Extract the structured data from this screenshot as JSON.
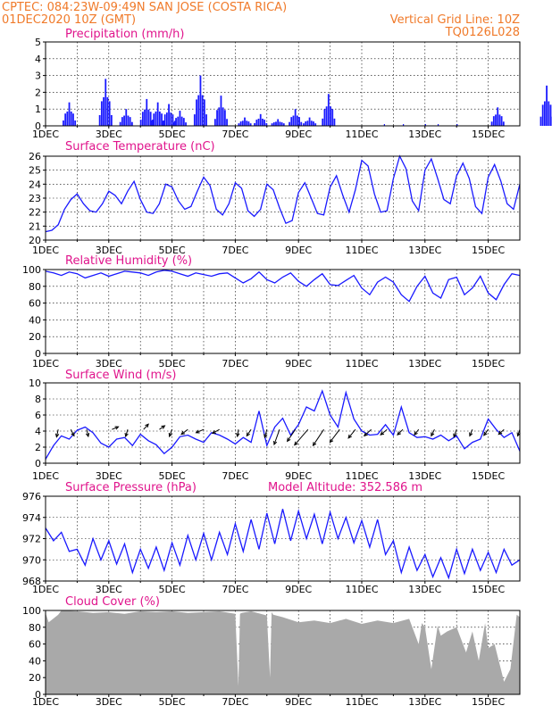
{
  "header": {
    "line1": "CPTEC:   084:23W-09:49N  SAN JOSE (COSTA RICA)",
    "line2": "01DEC2020 10Z (GMT)",
    "grid_note": "Vertical Grid Line: 10Z",
    "code": "TQ0126L028"
  },
  "x_ticks": [
    "1DEC",
    "3DEC",
    "5DEC",
    "7DEC",
    "9DEC",
    "11DEC",
    "13DEC",
    "15DEC"
  ],
  "colors": {
    "header": "#f07a2a",
    "panel_title": "#e0148c",
    "line": "#1a1aff",
    "cloud": "#a9a9a9",
    "grid": "#000000"
  },
  "chart_data": [
    {
      "id": "precip",
      "type": "bar",
      "title": "Precipitation (mm/h)",
      "ylim": [
        0,
        5
      ],
      "yticks": [
        "0",
        "1",
        "2",
        "3",
        "4",
        "5"
      ],
      "x_range_days": [
        0,
        15
      ],
      "clusters": [
        {
          "day": 0.75,
          "peak": 1.4
        },
        {
          "day": 1.9,
          "peak": 2.8
        },
        {
          "day": 2.55,
          "peak": 1.0
        },
        {
          "day": 3.2,
          "peak": 1.6
        },
        {
          "day": 3.55,
          "peak": 1.4
        },
        {
          "day": 3.9,
          "peak": 1.3
        },
        {
          "day": 4.25,
          "peak": 0.9
        },
        {
          "day": 4.9,
          "peak": 3.0
        },
        {
          "day": 5.55,
          "peak": 1.8
        },
        {
          "day": 6.3,
          "peak": 0.5
        },
        {
          "day": 6.8,
          "peak": 0.7
        },
        {
          "day": 7.35,
          "peak": 0.4
        },
        {
          "day": 7.9,
          "peak": 1.0
        },
        {
          "day": 8.35,
          "peak": 0.5
        },
        {
          "day": 8.95,
          "peak": 1.9
        },
        {
          "day": 14.3,
          "peak": 1.1
        },
        {
          "day": 15.85,
          "peak": 2.4
        }
      ]
    },
    {
      "id": "temp",
      "type": "line",
      "title": "Surface Temperature (nC)",
      "ylim": [
        20,
        26
      ],
      "yticks": [
        "20",
        "21",
        "22",
        "23",
        "24",
        "25",
        "26"
      ],
      "x_range_days": [
        0,
        15
      ],
      "x_days": [
        0.0,
        0.2,
        0.4,
        0.6,
        0.8,
        1.0,
        1.2,
        1.4,
        1.6,
        1.8,
        2.0,
        2.2,
        2.4,
        2.6,
        2.8,
        3.0,
        3.2,
        3.4,
        3.6,
        3.8,
        4.0,
        4.2,
        4.4,
        4.6,
        4.8,
        5.0,
        5.2,
        5.4,
        5.6,
        5.8,
        6.0,
        6.2,
        6.4,
        6.6,
        6.8,
        7.0,
        7.2,
        7.4,
        7.6,
        7.8,
        8.0,
        8.2,
        8.4,
        8.6,
        8.8,
        9.0,
        9.2,
        9.4,
        9.6,
        9.8,
        10.0,
        10.2,
        10.4,
        10.6,
        10.8,
        11.0,
        11.2,
        11.4,
        11.6,
        11.8,
        12.0,
        12.2,
        12.4,
        12.6,
        12.8,
        13.0,
        13.2,
        13.4,
        13.6,
        13.8,
        14.0,
        14.2,
        14.4,
        14.6,
        14.8,
        15.0
      ],
      "values": [
        20.6,
        20.7,
        21.1,
        22.2,
        22.9,
        23.3,
        22.6,
        22.1,
        22.0,
        22.6,
        23.5,
        23.2,
        22.6,
        23.5,
        24.2,
        22.9,
        22.0,
        21.9,
        22.6,
        24.0,
        23.8,
        22.8,
        22.2,
        22.4,
        23.5,
        24.5,
        23.9,
        22.2,
        21.8,
        22.6,
        24.1,
        23.7,
        22.1,
        21.7,
        22.2,
        24.0,
        23.6,
        22.3,
        21.2,
        21.4,
        23.4,
        24.1,
        23.0,
        21.9,
        21.8,
        23.8,
        24.6,
        23.2,
        22.0,
        23.6,
        25.7,
        25.3,
        23.3,
        22.0,
        22.1,
        24.4,
        26.0,
        25.1,
        22.8,
        22.1,
        25.0,
        25.8,
        24.4,
        22.9,
        22.6,
        24.6,
        25.5,
        24.4,
        22.4,
        21.9,
        24.5,
        25.4,
        24.2,
        22.6,
        22.2,
        24.0
      ]
    },
    {
      "id": "rh",
      "type": "line",
      "title": "Relative Humidity (%)",
      "ylim": [
        0,
        100
      ],
      "yticks": [
        "0",
        "20",
        "40",
        "60",
        "80",
        "100"
      ],
      "x_range_days": [
        0,
        15
      ],
      "x_days": [
        0.0,
        0.25,
        0.5,
        0.75,
        1.0,
        1.25,
        1.5,
        1.75,
        2.0,
        2.25,
        2.5,
        2.75,
        3.0,
        3.25,
        3.5,
        3.75,
        4.0,
        4.25,
        4.5,
        4.75,
        5.0,
        5.25,
        5.5,
        5.75,
        6.0,
        6.25,
        6.5,
        6.75,
        7.0,
        7.25,
        7.5,
        7.75,
        8.0,
        8.25,
        8.5,
        8.75,
        9.0,
        9.25,
        9.5,
        9.75,
        10.0,
        10.25,
        10.5,
        10.75,
        11.0,
        11.25,
        11.5,
        11.75,
        12.0,
        12.25,
        12.5,
        12.75,
        13.0,
        13.25,
        13.5,
        13.75,
        14.0,
        14.25,
        14.5,
        14.75,
        15.0
      ],
      "values": [
        98,
        96,
        93,
        97,
        95,
        90,
        93,
        96,
        92,
        95,
        98,
        97,
        96,
        93,
        97,
        99,
        98,
        95,
        92,
        96,
        94,
        92,
        95,
        96,
        90,
        84,
        89,
        97,
        88,
        84,
        91,
        96,
        86,
        80,
        88,
        95,
        82,
        81,
        87,
        93,
        78,
        70,
        85,
        91,
        85,
        70,
        62,
        80,
        92,
        72,
        66,
        88,
        91,
        70,
        78,
        92,
        72,
        64,
        82,
        95,
        93
      ]
    },
    {
      "id": "wind",
      "type": "line",
      "title": "Surface Wind (m/s)",
      "ylim": [
        0,
        10
      ],
      "yticks": [
        "0",
        "2",
        "4",
        "6",
        "8",
        "10"
      ],
      "x_range_days": [
        0,
        15
      ],
      "x_days": [
        0.0,
        0.25,
        0.5,
        0.75,
        1.0,
        1.25,
        1.5,
        1.75,
        2.0,
        2.25,
        2.5,
        2.75,
        3.0,
        3.25,
        3.5,
        3.75,
        4.0,
        4.25,
        4.5,
        4.75,
        5.0,
        5.25,
        5.5,
        5.75,
        6.0,
        6.25,
        6.5,
        6.75,
        7.0,
        7.25,
        7.5,
        7.75,
        8.0,
        8.25,
        8.5,
        8.75,
        9.0,
        9.25,
        9.5,
        9.75,
        10.0,
        10.25,
        10.5,
        10.75,
        11.0,
        11.25,
        11.5,
        11.75,
        12.0,
        12.25,
        12.5,
        12.75,
        13.0,
        13.25,
        13.5,
        13.75,
        14.0,
        14.25,
        14.5,
        14.75,
        15.0
      ],
      "values": [
        0.5,
        2.2,
        3.4,
        3.0,
        4.1,
        4.5,
        3.8,
        2.5,
        2.0,
        3.0,
        3.2,
        2.2,
        3.6,
        2.8,
        2.3,
        1.2,
        2.0,
        3.3,
        3.5,
        3.0,
        2.6,
        3.8,
        3.5,
        3.0,
        2.4,
        3.2,
        2.6,
        6.5,
        2.2,
        4.5,
        5.6,
        3.5,
        4.8,
        7.0,
        6.5,
        9.0,
        6.0,
        4.5,
        8.8,
        5.5,
        4.0,
        3.5,
        3.6,
        4.8,
        3.5,
        7.0,
        3.8,
        3.2,
        3.3,
        3.0,
        3.5,
        2.8,
        3.4,
        1.8,
        2.6,
        3.0,
        5.5,
        4.2,
        3.2,
        3.8,
        1.5
      ],
      "vectors": [
        {
          "day": 0.4,
          "u": -0.3,
          "v": -1.4
        },
        {
          "day": 0.8,
          "u": 0.6,
          "v": -1.2
        },
        {
          "day": 1.3,
          "u": 0.3,
          "v": -1.3
        },
        {
          "day": 2.1,
          "u": 1.2,
          "v": 0.5
        },
        {
          "day": 2.6,
          "u": -0.4,
          "v": -1.3
        },
        {
          "day": 3.1,
          "u": 0.9,
          "v": 1.0
        },
        {
          "day": 3.6,
          "u": 1.0,
          "v": 0.7
        },
        {
          "day": 4.0,
          "u": -0.5,
          "v": -1.3
        },
        {
          "day": 4.5,
          "u": -1.2,
          "v": -0.9
        },
        {
          "day": 5.0,
          "u": -1.4,
          "v": -0.6
        },
        {
          "day": 5.5,
          "u": -1.3,
          "v": -0.7
        },
        {
          "day": 6.1,
          "u": -0.2,
          "v": -1.3
        },
        {
          "day": 6.5,
          "u": -0.8,
          "v": -1.2
        },
        {
          "day": 7.0,
          "u": -0.4,
          "v": -1.5
        },
        {
          "day": 7.4,
          "u": -1.0,
          "v": -2.8
        },
        {
          "day": 7.9,
          "u": -1.5,
          "v": -2.2
        },
        {
          "day": 8.3,
          "u": -2.5,
          "v": -2.9
        },
        {
          "day": 8.8,
          "u": -2.0,
          "v": -3.0
        },
        {
          "day": 9.3,
          "u": -1.8,
          "v": -2.4
        },
        {
          "day": 9.8,
          "u": -1.3,
          "v": -1.6
        },
        {
          "day": 10.3,
          "u": -1.3,
          "v": -1.2
        },
        {
          "day": 10.8,
          "u": -1.2,
          "v": -1.0
        },
        {
          "day": 11.3,
          "u": -1.0,
          "v": -1.0
        },
        {
          "day": 11.8,
          "u": -0.8,
          "v": -1.0
        },
        {
          "day": 12.3,
          "u": -0.6,
          "v": -1.2
        },
        {
          "day": 13.0,
          "u": -0.5,
          "v": -1.4
        },
        {
          "day": 13.5,
          "u": -0.5,
          "v": -1.2
        },
        {
          "day": 14.0,
          "u": -0.8,
          "v": -1.1
        },
        {
          "day": 14.5,
          "u": -1.0,
          "v": -0.9
        },
        {
          "day": 15.0,
          "u": -0.4,
          "v": -1.2
        }
      ]
    },
    {
      "id": "pres",
      "type": "line",
      "title": "Surface Pressure (hPa)",
      "annotation": "Model Altitude: 352.586 m",
      "ylim": [
        968,
        976
      ],
      "yticks": [
        "968",
        "970",
        "972",
        "974",
        "976"
      ],
      "x_range_days": [
        0,
        15
      ],
      "x_days": [
        0.0,
        0.25,
        0.5,
        0.75,
        1.0,
        1.25,
        1.5,
        1.75,
        2.0,
        2.25,
        2.5,
        2.75,
        3.0,
        3.25,
        3.5,
        3.75,
        4.0,
        4.25,
        4.5,
        4.75,
        5.0,
        5.25,
        5.5,
        5.75,
        6.0,
        6.25,
        6.5,
        6.75,
        7.0,
        7.25,
        7.5,
        7.75,
        8.0,
        8.25,
        8.5,
        8.75,
        9.0,
        9.25,
        9.5,
        9.75,
        10.0,
        10.25,
        10.5,
        10.75,
        11.0,
        11.25,
        11.5,
        11.75,
        12.0,
        12.25,
        12.5,
        12.75,
        13.0,
        13.25,
        13.5,
        13.75,
        14.0,
        14.25,
        14.5,
        14.75,
        15.0
      ],
      "values": [
        973.0,
        971.8,
        972.6,
        970.8,
        971.0,
        969.5,
        972.0,
        970.0,
        971.8,
        969.6,
        971.5,
        968.8,
        971.0,
        969.2,
        971.2,
        969.0,
        971.6,
        969.5,
        972.3,
        970.0,
        972.5,
        970.0,
        972.6,
        970.5,
        973.4,
        970.8,
        973.8,
        971.0,
        974.4,
        971.5,
        974.8,
        971.8,
        974.6,
        972.0,
        974.3,
        971.5,
        974.5,
        972.0,
        974.0,
        971.6,
        973.7,
        971.2,
        973.8,
        970.5,
        971.8,
        968.8,
        971.2,
        969.0,
        970.5,
        968.4,
        970.2,
        968.3,
        971.0,
        968.7,
        971.0,
        969.0,
        970.7,
        968.8,
        971.0,
        969.5,
        970.0
      ]
    },
    {
      "id": "cloud",
      "type": "area",
      "title": "Cloud Cover (%)",
      "ylim": [
        0,
        100
      ],
      "yticks": [
        "0",
        "20",
        "40",
        "60",
        "80",
        "100"
      ],
      "x_range_days": [
        0,
        15
      ],
      "x_days": [
        0.0,
        0.1,
        0.4,
        0.5,
        1.0,
        1.5,
        2.0,
        2.5,
        3.0,
        3.5,
        4.0,
        4.5,
        5.0,
        5.5,
        6.0,
        6.1,
        6.15,
        6.2,
        6.5,
        7.0,
        7.1,
        7.15,
        7.2,
        7.5,
        8.0,
        8.5,
        9.0,
        9.5,
        10.0,
        10.5,
        11.0,
        11.5,
        11.8,
        11.9,
        12.0,
        12.2,
        12.4,
        12.5,
        12.7,
        13.0,
        13.3,
        13.5,
        13.7,
        13.9,
        14.0,
        14.2,
        14.5,
        14.7,
        14.9,
        15.0
      ],
      "values": [
        97,
        86,
        95,
        100,
        99,
        97,
        98,
        96,
        99,
        98,
        99,
        97,
        98,
        99,
        96,
        10,
        96,
        97,
        99,
        94,
        20,
        98,
        95,
        92,
        86,
        88,
        85,
        90,
        84,
        88,
        85,
        90,
        60,
        85,
        80,
        30,
        82,
        70,
        75,
        80,
        50,
        75,
        40,
        85,
        55,
        60,
        15,
        30,
        95,
        92
      ]
    }
  ]
}
